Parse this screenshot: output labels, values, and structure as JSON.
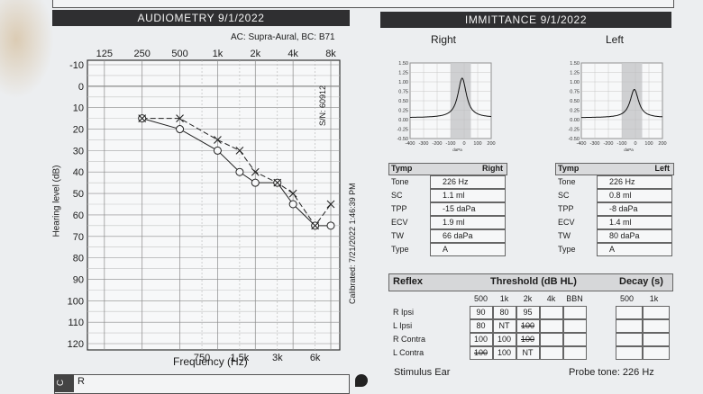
{
  "audiometry": {
    "title": "AUDIOMETRY 9/1/2022",
    "transducer": "AC: Supra-Aural, BC: B71",
    "serial": "S/N: 60912",
    "calibrated": "Calibrated: 7/21/2022 1:46:39 PM",
    "y_label": "Hearing level (dB)",
    "x_label": "Frequency (Hz)",
    "freq_top": [
      "125",
      "250",
      "500",
      "1k",
      "2k",
      "4k",
      "8k"
    ],
    "freq_bottom": [
      "750",
      "1.5k",
      "3k",
      "6k"
    ],
    "db_ticks": [
      "-10",
      "0",
      "10",
      "20",
      "30",
      "40",
      "50",
      "60",
      "70",
      "80",
      "90",
      "100",
      "110",
      "120"
    ]
  },
  "chart_data": {
    "type": "line",
    "x_axis": "frequency (Hz), log scale",
    "y_axis": "hearing level (dB), inverted",
    "ylim": [
      -10,
      120
    ],
    "series": [
      {
        "symbol": "circle",
        "x": [
          250,
          500,
          1000,
          1500,
          2000,
          3000,
          4000,
          6000,
          8000
        ],
        "y": [
          15,
          20,
          30,
          40,
          45,
          45,
          55,
          65,
          65
        ]
      },
      {
        "symbol": "x",
        "x": [
          250,
          500,
          1000,
          1500,
          2000,
          3000,
          4000,
          6000,
          8000
        ],
        "y": [
          15,
          15,
          25,
          30,
          40,
          45,
          50,
          65,
          55
        ]
      }
    ]
  },
  "immittance": {
    "title": "IMMITTANCE 9/1/2022",
    "right_label": "Right",
    "left_label": "Left",
    "yticks": [
      "1.50",
      "1.25",
      "1.00",
      "0.75",
      "0.50",
      "0.25",
      "0.00",
      "-0.25",
      "-0.50"
    ],
    "xticks": [
      "-400",
      "-300",
      "-200",
      "-100",
      "0",
      "100",
      "200"
    ],
    "x_unit": "daPa",
    "right": {
      "tymp": "Tymp",
      "ear": "Right",
      "rows": [
        {
          "label": "Tone",
          "value": "226 Hz"
        },
        {
          "label": "SC",
          "value": "1.1 ml"
        },
        {
          "label": "TPP",
          "value": "-15 daPa"
        },
        {
          "label": "ECV",
          "value": "1.9 ml"
        },
        {
          "label": "TW",
          "value": "66 daPa"
        },
        {
          "label": "Type",
          "value": "A"
        }
      ]
    },
    "left": {
      "tymp": "Tymp",
      "ear": "Left",
      "rows": [
        {
          "label": "Tone",
          "value": "226 Hz"
        },
        {
          "label": "SC",
          "value": "0.8 ml"
        },
        {
          "label": "TPP",
          "value": "-8 daPa"
        },
        {
          "label": "ECV",
          "value": "1.4 ml"
        },
        {
          "label": "TW",
          "value": "80 daPa"
        },
        {
          "label": "Type",
          "value": "A"
        }
      ]
    }
  },
  "reflex": {
    "title": "Reflex",
    "threshold": "Threshold (dB HL)",
    "decay": "Decay (s)",
    "threshold_cols": [
      "500",
      "1k",
      "2k",
      "4k",
      "BBN"
    ],
    "decay_cols": [
      "500",
      "1k"
    ],
    "rows": [
      {
        "label": "R Ipsi",
        "cells": [
          "90",
          "80",
          "95",
          "",
          ""
        ]
      },
      {
        "label": "L Ipsi",
        "cells": [
          "80",
          "NT",
          "100",
          "",
          ""
        ]
      },
      {
        "label": "R Contra",
        "cells": [
          "100",
          "100",
          "100",
          "",
          ""
        ]
      },
      {
        "label": "L Contra",
        "cells": [
          "100",
          "100",
          "NT",
          "",
          ""
        ]
      }
    ],
    "stimulus_ear": "Stimulus Ear",
    "probe_tone": "Probe tone: 226 Hz"
  },
  "footer": {
    "left_letters": "C",
    "r_label": "R"
  }
}
